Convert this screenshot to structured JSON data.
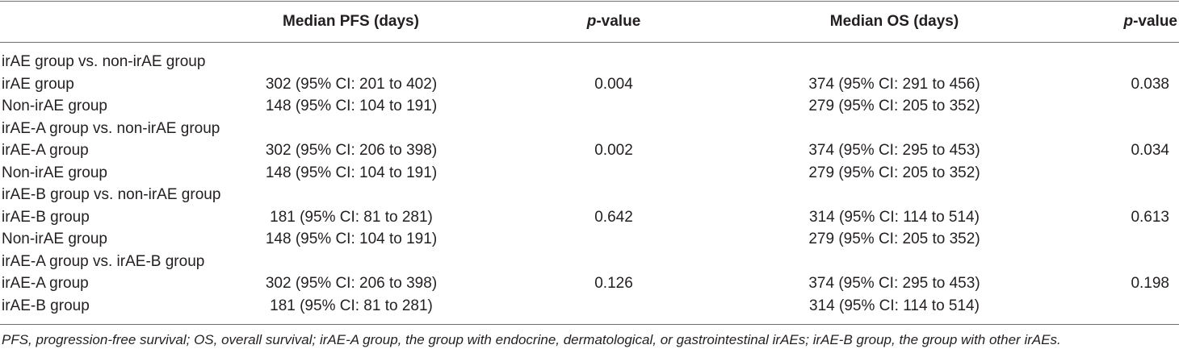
{
  "headers": {
    "median_pfs": "Median PFS (days)",
    "p_value_italic": "p",
    "p_value_suffix": "-value",
    "median_os": "Median OS (days)"
  },
  "rows": [
    {
      "label": "irAE group vs. non-irAE group",
      "pfs": "",
      "p_pfs": "",
      "os": "",
      "p_os": ""
    },
    {
      "label": "irAE group",
      "pfs": "302 (95% CI: 201 to 402)",
      "p_pfs": "0.004",
      "os": "374 (95% CI: 291 to 456)",
      "p_os": "0.038"
    },
    {
      "label": "Non-irAE group",
      "pfs": "148 (95% CI: 104 to 191)",
      "p_pfs": "",
      "os": "279 (95% CI: 205 to 352)",
      "p_os": ""
    },
    {
      "label": "irAE-A group vs. non-irAE group",
      "pfs": "",
      "p_pfs": "",
      "os": "",
      "p_os": ""
    },
    {
      "label": "irAE-A group",
      "pfs": "302 (95% CI: 206 to 398)",
      "p_pfs": "0.002",
      "os": "374 (95% CI: 295 to 453)",
      "p_os": "0.034"
    },
    {
      "label": "Non-irAE group",
      "pfs": "148 (95% CI: 104 to 191)",
      "p_pfs": "",
      "os": "279 (95% CI: 205 to 352)",
      "p_os": ""
    },
    {
      "label": "irAE-B group vs. non-irAE group",
      "pfs": "",
      "p_pfs": "",
      "os": "",
      "p_os": ""
    },
    {
      "label": "irAE-B group",
      "pfs": "181 (95% CI: 81 to 281)",
      "p_pfs": "0.642",
      "os": "314 (95% CI: 114 to 514)",
      "p_os": "0.613"
    },
    {
      "label": "Non-irAE group",
      "pfs": "148 (95% CI: 104 to 191)",
      "p_pfs": "",
      "os": "279 (95% CI: 205 to 352)",
      "p_os": ""
    },
    {
      "label": "irAE-A group vs. irAE-B group",
      "pfs": "",
      "p_pfs": "",
      "os": "",
      "p_os": ""
    },
    {
      "label": "irAE-A group",
      "pfs": "302 (95% CI: 206 to 398)",
      "p_pfs": "0.126",
      "os": "374 (95% CI: 295 to 453)",
      "p_os": "0.198"
    },
    {
      "label": "irAE-B group",
      "pfs": "181 (95% CI: 81 to 281)",
      "p_pfs": "",
      "os": "314 (95% CI: 114 to 514)",
      "p_os": ""
    }
  ],
  "footnote": "PFS, progression-free survival; OS, overall survival; irAE-A group, the group with endocrine, dermatological, or gastrointestinal irAEs; irAE-B group, the group with other irAEs."
}
